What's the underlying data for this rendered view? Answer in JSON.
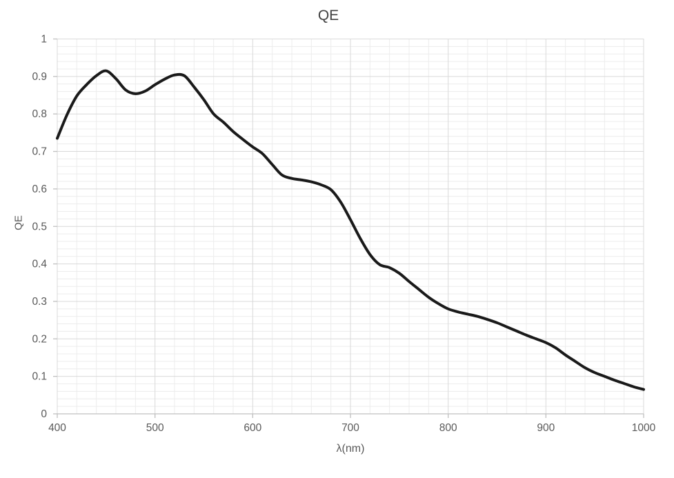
{
  "chart_data": {
    "type": "line",
    "title": "QE",
    "xlabel": "λ(nm)",
    "ylabel": "QE",
    "xlim": [
      400,
      1000
    ],
    "ylim": [
      0,
      1
    ],
    "x_ticks": [
      400,
      500,
      600,
      700,
      800,
      900,
      1000
    ],
    "y_ticks": [
      0,
      0.1,
      0.2,
      0.3,
      0.4,
      0.5,
      0.6,
      0.7,
      0.8,
      0.9,
      1
    ],
    "y_tick_labels": [
      "0",
      "0.1",
      "0.2",
      "0.3",
      "0.4",
      "0.5",
      "0.6",
      "0.7",
      "0.8",
      "0.9",
      "1"
    ],
    "x_minor_step": 20,
    "y_minor_step": 0.02,
    "grid": "major-and-minor",
    "legend_position": "none",
    "colors": {
      "series": "#1a1a1a",
      "major_grid": "#d9d9d9",
      "minor_grid": "#ececec",
      "axis_line": "#bfbfbf",
      "tick_label": "#595959",
      "title": "#404040"
    },
    "series": [
      {
        "name": "QE",
        "x": [
          400,
          410,
          420,
          430,
          440,
          450,
          460,
          470,
          480,
          490,
          500,
          510,
          520,
          530,
          540,
          550,
          560,
          570,
          580,
          590,
          600,
          610,
          620,
          630,
          640,
          650,
          660,
          670,
          680,
          690,
          700,
          710,
          720,
          730,
          740,
          750,
          760,
          770,
          780,
          790,
          800,
          810,
          820,
          830,
          840,
          850,
          860,
          870,
          880,
          890,
          900,
          910,
          920,
          930,
          940,
          950,
          960,
          970,
          980,
          990,
          1000
        ],
        "y": [
          0.735,
          0.798,
          0.848,
          0.878,
          0.902,
          0.915,
          0.894,
          0.864,
          0.854,
          0.861,
          0.878,
          0.893,
          0.904,
          0.902,
          0.872,
          0.838,
          0.8,
          0.778,
          0.753,
          0.732,
          0.712,
          0.694,
          0.665,
          0.637,
          0.628,
          0.624,
          0.619,
          0.611,
          0.598,
          0.565,
          0.518,
          0.468,
          0.425,
          0.398,
          0.39,
          0.375,
          0.353,
          0.332,
          0.311,
          0.294,
          0.28,
          0.272,
          0.266,
          0.26,
          0.252,
          0.243,
          0.232,
          0.221,
          0.21,
          0.2,
          0.19,
          0.176,
          0.157,
          0.14,
          0.123,
          0.11,
          0.1,
          0.09,
          0.081,
          0.072,
          0.065
        ]
      }
    ]
  }
}
